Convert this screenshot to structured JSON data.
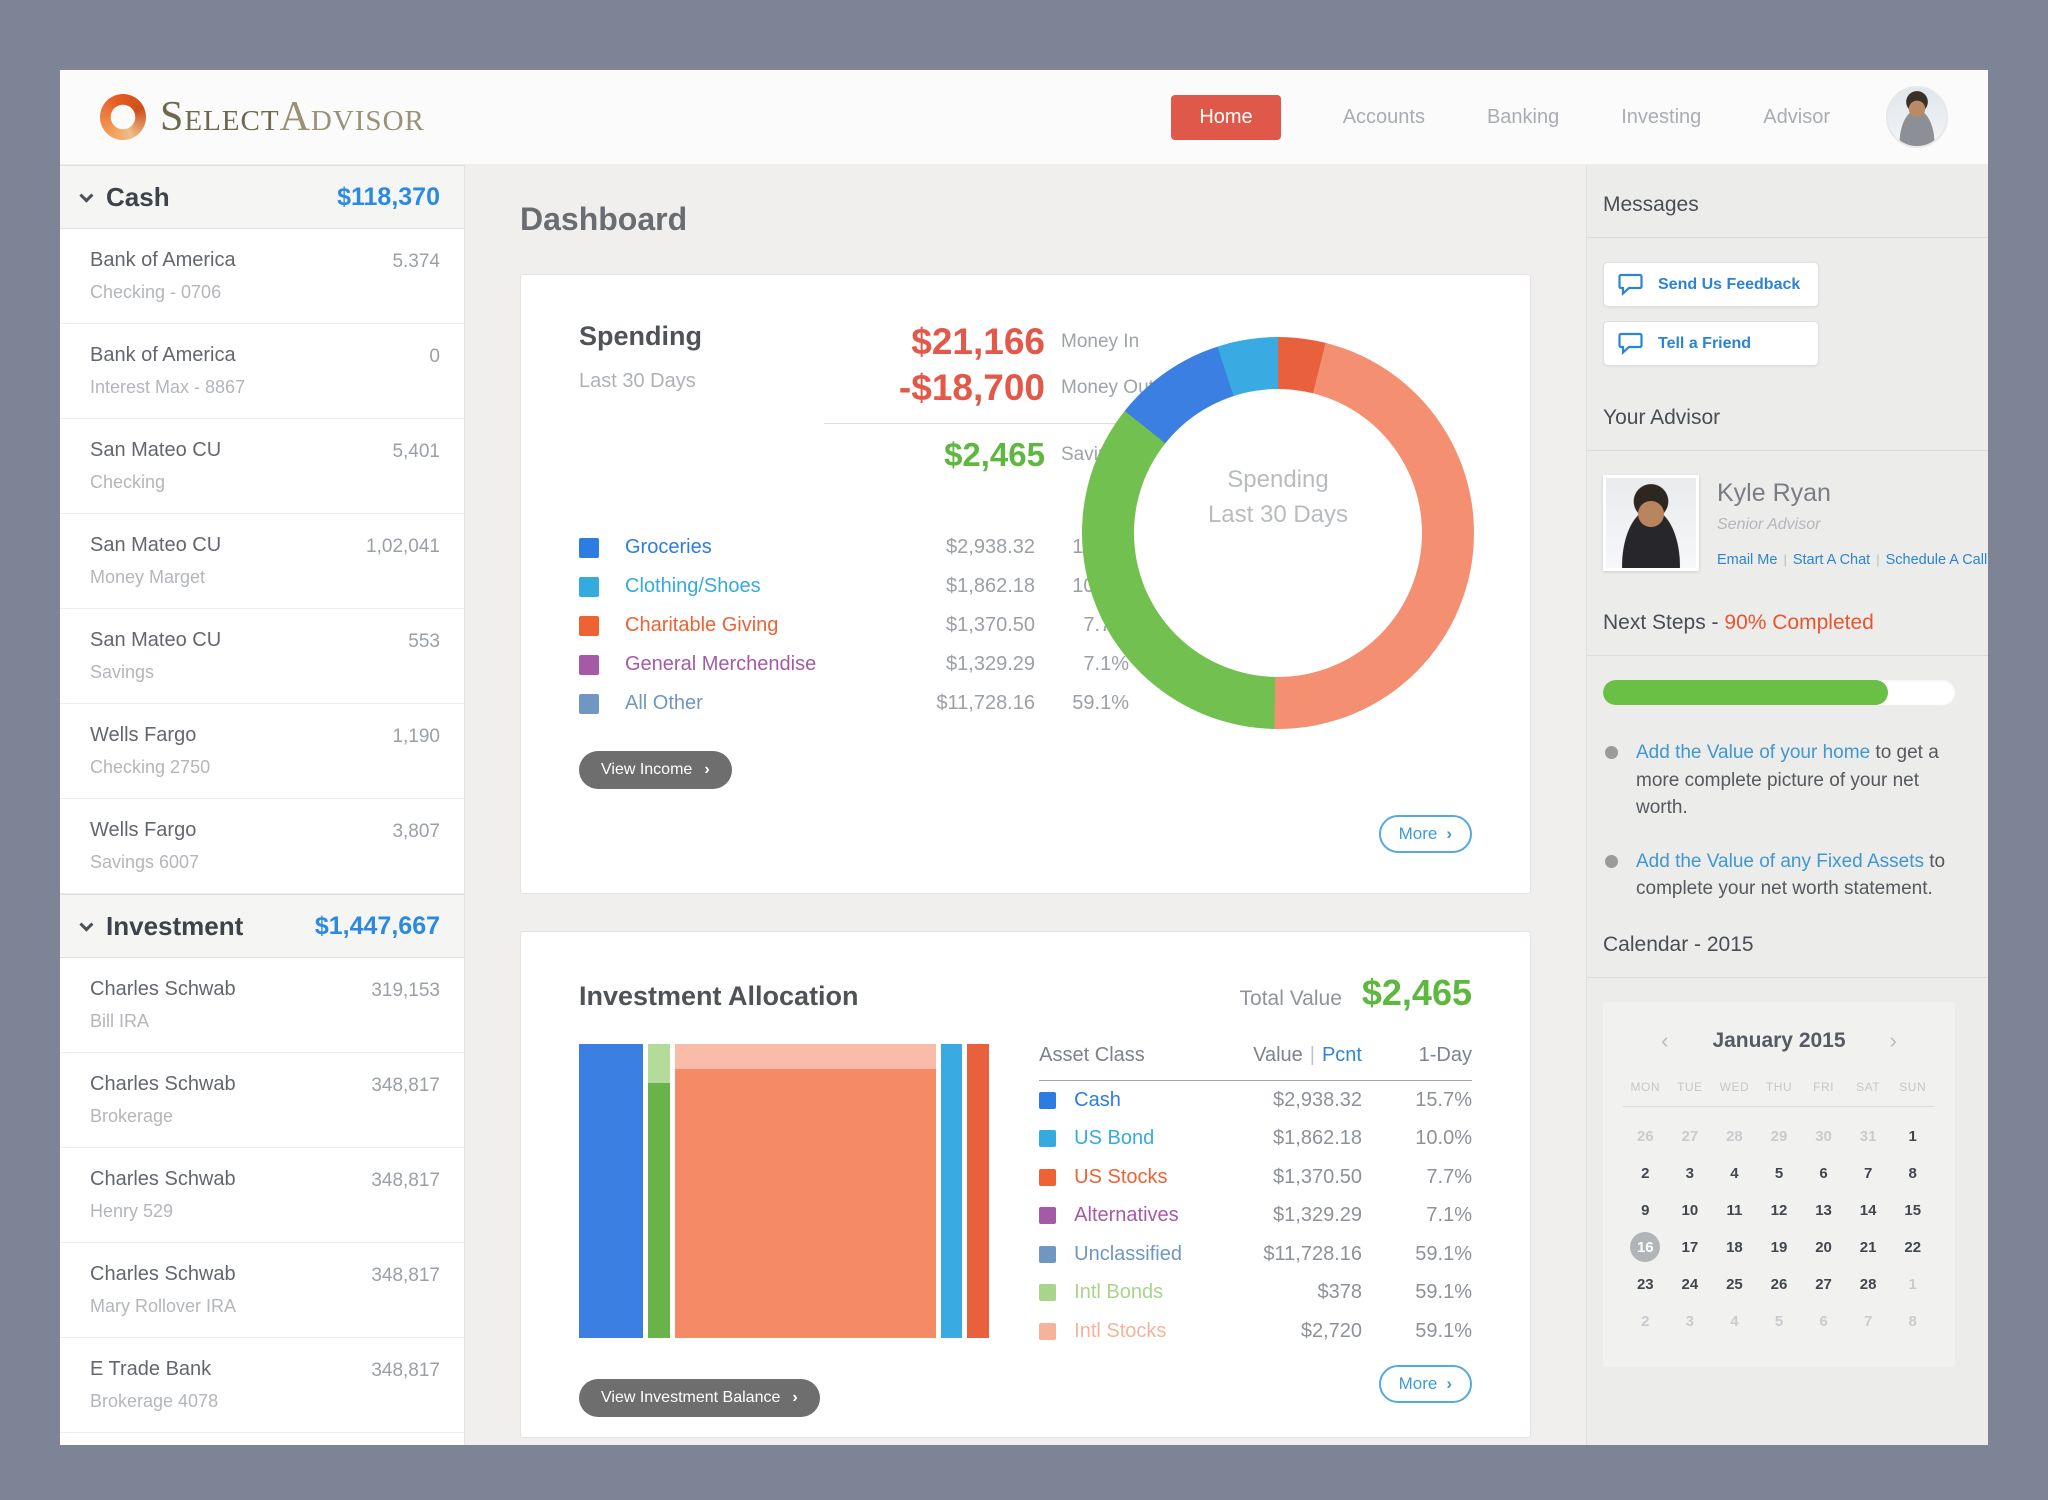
{
  "ui": {
    "icons": {
      "chevron_right": "›",
      "chevron_left": "‹",
      "pipe": "|"
    }
  },
  "header": {
    "logo": {
      "select": "Select",
      "advisor": "Advisor"
    },
    "nav": {
      "active": "Home",
      "items": [
        "Home",
        "Accounts",
        "Banking",
        "Investing",
        "Advisor"
      ]
    }
  },
  "sidebar": {
    "groups": [
      {
        "label": "Cash",
        "total": "$118,370",
        "items": [
          {
            "name": "Bank of America",
            "sub": "Checking - 0706",
            "value": "5.374"
          },
          {
            "name": "Bank of America",
            "sub": "Interest Max - 8867",
            "value": "0"
          },
          {
            "name": "San Mateo CU",
            "sub": "Checking",
            "value": "5,401"
          },
          {
            "name": "San Mateo CU",
            "sub": "Money Marget",
            "value": "1,02,041"
          },
          {
            "name": "San Mateo CU",
            "sub": "Savings",
            "value": "553"
          },
          {
            "name": "Wells Fargo",
            "sub": "Checking 2750",
            "value": "1,190"
          },
          {
            "name": "Wells Fargo",
            "sub": "Savings 6007",
            "value": "3,807"
          }
        ]
      },
      {
        "label": "Investment",
        "total": "$1,447,667",
        "items": [
          {
            "name": "Charles Schwab",
            "sub": "Bill IRA",
            "value": "319,153"
          },
          {
            "name": "Charles Schwab",
            "sub": "Brokerage",
            "value": "348,817"
          },
          {
            "name": "Charles Schwab",
            "sub": "Henry 529",
            "value": "348,817"
          },
          {
            "name": "Charles Schwab",
            "sub": "Mary Rollover IRA",
            "value": "348,817"
          },
          {
            "name": "E Trade Bank",
            "sub": "Brokerage 4078",
            "value": "348,817"
          }
        ]
      }
    ]
  },
  "main": {
    "title": "Dashboard",
    "spending": {
      "title": "Spending",
      "subtitle": "Last 30 Days",
      "money_in": {
        "amount": "$21,166",
        "label": "Money In"
      },
      "money_out": {
        "amount": "-$18,700",
        "label": "Money Out"
      },
      "savings": {
        "amount": "$2,465",
        "label": "Savings"
      },
      "legend": [
        {
          "label": "Groceries",
          "color": "#2d7ce1",
          "value": "$2,938.32",
          "pct": "15.7%"
        },
        {
          "label": "Clothing/Shoes",
          "color": "#35aade",
          "value": "$1,862.18",
          "pct": "10.0%"
        },
        {
          "label": "Charitable Giving",
          "color": "#ee6233",
          "value": "$1,370.50",
          "pct": "7.7%"
        },
        {
          "label": "General Merchendise",
          "color": "#a55aa8",
          "value": "$1,329.29",
          "pct": "7.1%"
        },
        {
          "label": "All Other",
          "color": "#7096c2",
          "value": "$11,728.16",
          "pct": "59.1%"
        }
      ],
      "center_line1": "Spending",
      "center_line2": "Last 30 Days",
      "view_button": "View Income",
      "more_button": "More"
    },
    "allocation": {
      "title": "Investment Allocation",
      "total_label": "Total Value",
      "total_value": "$2,465",
      "table_headers": {
        "asset": "Asset Class",
        "value": "Value",
        "pcnt": "Pcnt",
        "day": "1-Day"
      },
      "rows": [
        {
          "label": "Cash",
          "color": "#2d7ce1",
          "value": "$2,938.32",
          "day": "15.7%"
        },
        {
          "label": "US Bond",
          "color": "#35aade",
          "value": "$1,862.18",
          "day": "10.0%"
        },
        {
          "label": "US Stocks",
          "color": "#ee6233",
          "value": "$1,370.50",
          "day": "7.7%"
        },
        {
          "label": "Alternatives",
          "color": "#a55aa8",
          "value": "$1,329.29",
          "day": "7.1%"
        },
        {
          "label": "Unclassified",
          "color": "#7096c2",
          "value": "$11,728.16",
          "day": "59.1%"
        },
        {
          "label": "Intl Bonds",
          "color": "#a8d48c",
          "value": "$378",
          "day": "59.1%"
        },
        {
          "label": "Intl Stocks",
          "color": "#f7b29c",
          "value": "$2,720",
          "day": "59.1%"
        }
      ],
      "view_button": "View Investment Balance",
      "more_button": "More"
    }
  },
  "right": {
    "messages_title": "Messages",
    "buttons": [
      "Send Us Feedback",
      "Tell a Friend"
    ],
    "advisor_title": "Your Advisor",
    "advisor": {
      "name": "Kyle Ryan",
      "role": "Senior Advisor",
      "links": [
        "Email Me",
        "Start A Chat",
        "Schedule A Call"
      ]
    },
    "next_steps": {
      "title_prefix": "Next Steps - ",
      "title_highlight": "90% Completed",
      "progress_fill_pct": 81,
      "bullets": [
        {
          "link": "Add the Value of your home",
          "rest": " to get a more complete picture of your net worth."
        },
        {
          "link": "Add the Value of any Fixed Assets",
          "rest": " to complete your net worth statement."
        }
      ]
    },
    "calendar": {
      "section_title": "Calendar - 2015",
      "month_title": "January 2015",
      "day_names": [
        "MON",
        "TUE",
        "WED",
        "THU",
        "FRI",
        "SAT",
        "SUN"
      ],
      "weeks": [
        [
          {
            "d": "26",
            "m": 1
          },
          {
            "d": "27",
            "m": 1
          },
          {
            "d": "28",
            "m": 1
          },
          {
            "d": "29",
            "m": 1
          },
          {
            "d": "30",
            "m": 1
          },
          {
            "d": "31",
            "m": 1
          },
          {
            "d": "1"
          }
        ],
        [
          {
            "d": "2"
          },
          {
            "d": "3"
          },
          {
            "d": "4"
          },
          {
            "d": "5"
          },
          {
            "d": "6"
          },
          {
            "d": "7"
          },
          {
            "d": "8"
          }
        ],
        [
          {
            "d": "9"
          },
          {
            "d": "10"
          },
          {
            "d": "11"
          },
          {
            "d": "12"
          },
          {
            "d": "13"
          },
          {
            "d": "14"
          },
          {
            "d": "15"
          }
        ],
        [
          {
            "d": "16",
            "s": 1
          },
          {
            "d": "17"
          },
          {
            "d": "18"
          },
          {
            "d": "19"
          },
          {
            "d": "20"
          },
          {
            "d": "21"
          },
          {
            "d": "22"
          }
        ],
        [
          {
            "d": "23"
          },
          {
            "d": "24"
          },
          {
            "d": "25"
          },
          {
            "d": "26"
          },
          {
            "d": "27"
          },
          {
            "d": "28"
          },
          {
            "d": "1",
            "m": 1
          }
        ],
        [
          {
            "d": "2",
            "m": 1
          },
          {
            "d": "3",
            "m": 1
          },
          {
            "d": "4",
            "m": 1
          },
          {
            "d": "5",
            "m": 1
          },
          {
            "d": "6",
            "m": 1
          },
          {
            "d": "7",
            "m": 1
          },
          {
            "d": "8",
            "m": 1
          }
        ]
      ]
    }
  },
  "chart_data": [
    {
      "type": "donut",
      "title": "Spending Last 30 Days",
      "categories": [
        "Groceries",
        "Clothing/Shoes",
        "Charitable Giving",
        "General Merchendise",
        "All Other"
      ],
      "values": [
        2938.32,
        1862.18,
        1370.5,
        1329.29,
        11728.16
      ],
      "percents": [
        15.7,
        10.0,
        7.7,
        7.1,
        59.1
      ],
      "segments": [
        {
          "color": "#e8613c",
          "pct": 3.9
        },
        {
          "color": "#f49071",
          "pct": 46.4
        },
        {
          "color": "#72c04f",
          "pct": 35.4
        },
        {
          "color": "#3c7fe2",
          "pct": 9.3
        },
        {
          "color": "#39abe2",
          "pct": 5.0
        }
      ]
    },
    {
      "type": "mekko",
      "title": "Investment Allocation",
      "total_value": 2465,
      "columns": [
        {
          "width_pct": 16.2,
          "parts": [
            {
              "color": "#3c7fe2",
              "pct": 100
            }
          ]
        },
        {
          "width_pct": 5.5,
          "parts": [
            {
              "color": "#b5db9a",
              "pct": 13.4
            },
            {
              "color": "#6ab34a",
              "pct": 86.6
            }
          ]
        },
        {
          "width_pct": 65.8,
          "parts": [
            {
              "color": "#f9bca9",
              "pct": 8.5
            },
            {
              "color": "#f58a67",
              "pct": 91.5
            }
          ]
        },
        {
          "width_pct": 5.5,
          "parts": [
            {
              "color": "#39abe2",
              "pct": 100
            }
          ]
        },
        {
          "width_pct": 5.5,
          "parts": [
            {
              "color": "#e8613c",
              "pct": 100
            }
          ]
        }
      ]
    }
  ]
}
